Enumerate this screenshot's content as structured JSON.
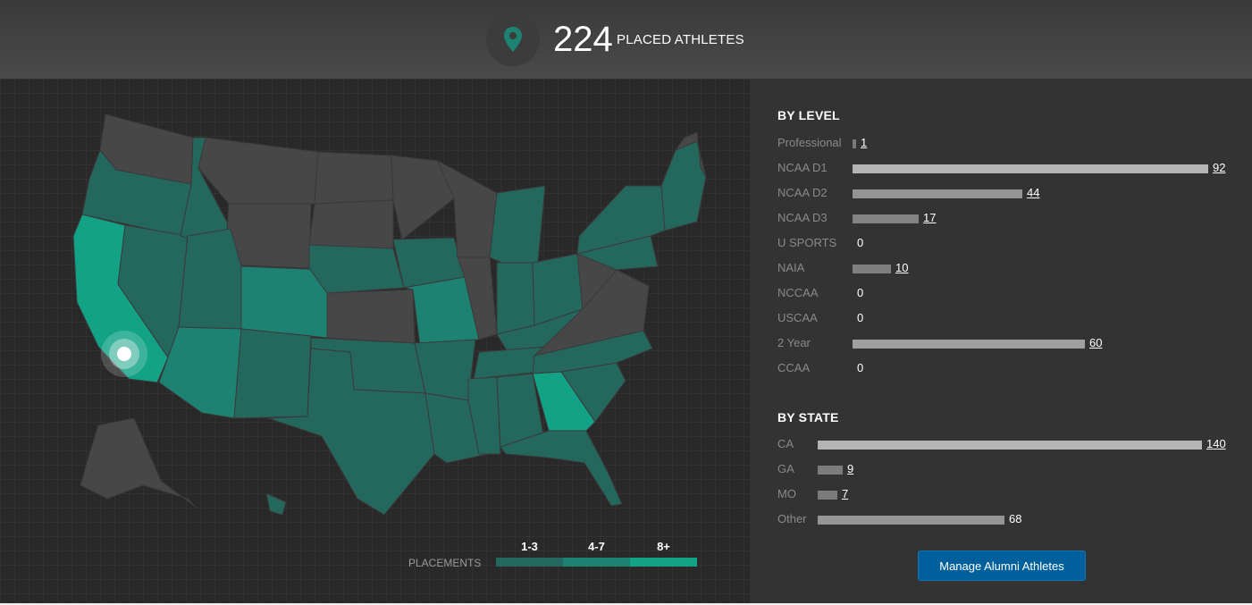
{
  "header": {
    "count": "224",
    "label": "PLACED ATHLETES",
    "icon": "map-pin-icon"
  },
  "map": {
    "legend": {
      "label": "PLACEMENTS",
      "bins": [
        {
          "label": "1-3",
          "color": "#24675d"
        },
        {
          "label": "4-7",
          "color": "#1e8273"
        },
        {
          "label": "8+",
          "color": "#12a386"
        }
      ]
    },
    "colors": {
      "none": "#474747",
      "low": "#24675d",
      "mid": "#1e8273",
      "high": "#12a386"
    },
    "marker_state": "CA"
  },
  "by_level": {
    "title": "BY LEVEL",
    "max": 92,
    "rows": [
      {
        "label": "Professional",
        "value": 1,
        "link": true
      },
      {
        "label": "NCAA D1",
        "value": 92,
        "link": true
      },
      {
        "label": "NCAA D2",
        "value": 44,
        "link": true
      },
      {
        "label": "NCAA D3",
        "value": 17,
        "link": true
      },
      {
        "label": "U SPORTS",
        "value": 0,
        "link": false
      },
      {
        "label": "NAIA",
        "value": 10,
        "link": true
      },
      {
        "label": "NCCAA",
        "value": 0,
        "link": false
      },
      {
        "label": "USCAA",
        "value": 0,
        "link": false
      },
      {
        "label": "2 Year",
        "value": 60,
        "link": true
      },
      {
        "label": "CCAA",
        "value": 0,
        "link": false
      }
    ]
  },
  "by_state": {
    "title": "BY STATE",
    "max": 140,
    "rows": [
      {
        "label": "CA",
        "value": 140,
        "link": true
      },
      {
        "label": "GA",
        "value": 9,
        "link": true
      },
      {
        "label": "MO",
        "value": 7,
        "link": true
      },
      {
        "label": "Other",
        "value": 68,
        "link": false
      }
    ]
  },
  "button": {
    "label": "Manage Alumni Athletes"
  }
}
